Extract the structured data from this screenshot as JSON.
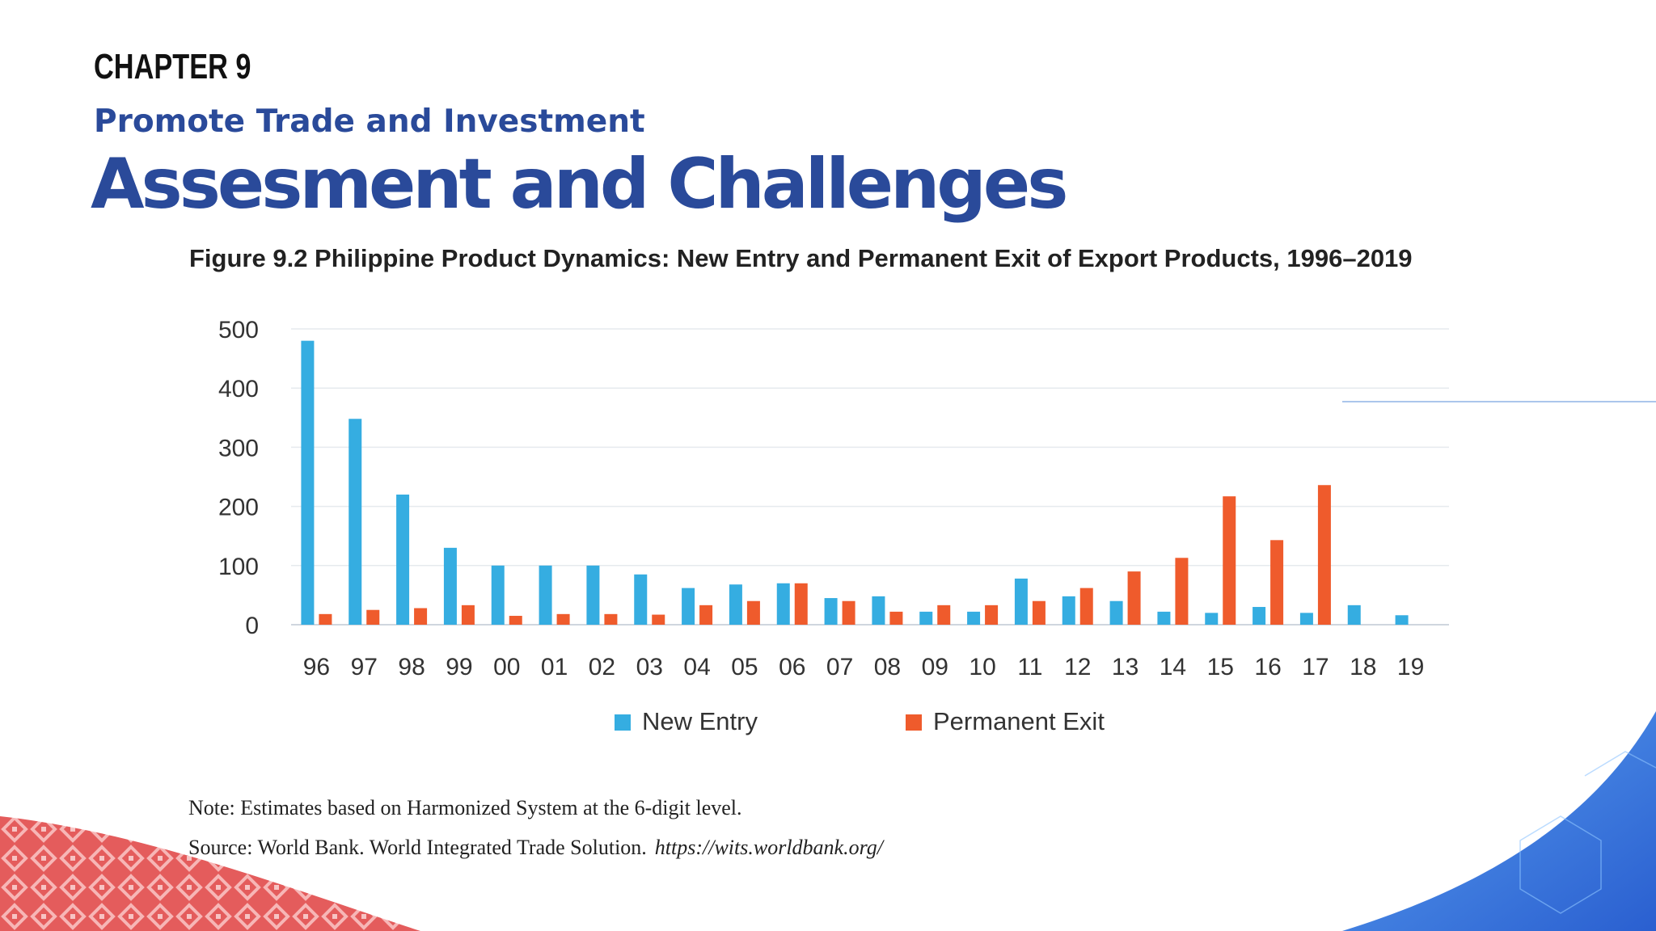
{
  "header": {
    "chapter": "CHAPTER 9",
    "subtitle": "Promote Trade and Investment",
    "title": "Assesment and Challenges"
  },
  "figure": {
    "title": "Figure 9.2 Philippine Product Dynamics: New Entry and Permanent Exit of Export Products, 1996–2019"
  },
  "chart_data": {
    "type": "bar",
    "title": "Figure 9.2 Philippine Product Dynamics: New Entry and Permanent Exit of Export Products, 1996–2019",
    "xlabel": "",
    "ylabel": "",
    "ylim": [
      0,
      500
    ],
    "yticks": [
      0,
      100,
      200,
      300,
      400,
      500
    ],
    "categories": [
      "96",
      "97",
      "98",
      "99",
      "00",
      "01",
      "02",
      "03",
      "04",
      "05",
      "06",
      "07",
      "08",
      "09",
      "10",
      "11",
      "12",
      "13",
      "14",
      "15",
      "16",
      "17",
      "18",
      "19"
    ],
    "series": [
      {
        "name": "New Entry",
        "color": "#35ade1",
        "values": [
          480,
          348,
          220,
          130,
          100,
          100,
          100,
          85,
          62,
          68,
          70,
          45,
          48,
          22,
          22,
          78,
          48,
          40,
          22,
          20,
          30,
          20,
          33,
          16
        ]
      },
      {
        "name": "Permanent Exit",
        "color": "#ef5b2c",
        "values": [
          18,
          25,
          28,
          33,
          15,
          18,
          18,
          17,
          33,
          40,
          70,
          40,
          22,
          33,
          33,
          40,
          62,
          90,
          113,
          217,
          143,
          236,
          0,
          0
        ]
      }
    ],
    "grid": true,
    "legend": "bottom-center"
  },
  "notes": {
    "note": "Note: Estimates based on Harmonized System at the 6-digit level.",
    "source": "Source:  World Bank. World Integrated Trade Solution.",
    "source_url": "https://wits.worldbank.org/"
  },
  "colors": {
    "brand_blue": "#2a4a9a",
    "decor_red": "#e55a5a",
    "decor_blue": "#3b73db"
  }
}
